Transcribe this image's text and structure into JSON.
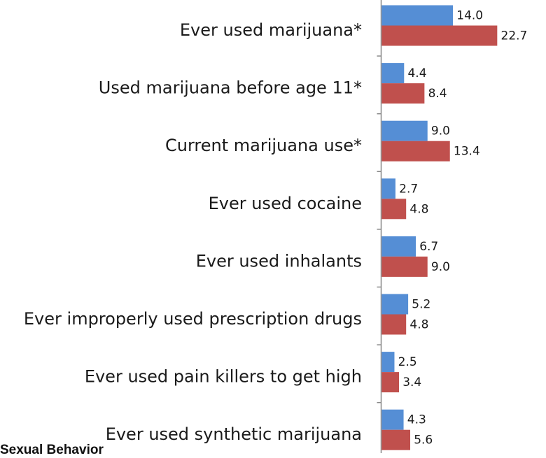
{
  "chart_data": {
    "type": "bar",
    "orientation": "horizontal",
    "categories": [
      "Ever used marijuana*",
      "Used marijuana before age 11*",
      "Current marijuana use*",
      "Ever used cocaine",
      "Ever used inhalants",
      "Ever improperly used prescription drugs",
      "Ever used pain killers to get high",
      "Ever used synthetic marijuana"
    ],
    "series": [
      {
        "values": [
          14.0,
          4.4,
          9.0,
          2.7,
          6.7,
          5.2,
          2.5,
          4.3
        ],
        "labels": [
          "14.0",
          "4.4",
          "9.0",
          "2.7",
          "6.7",
          "5.2",
          "2.5",
          "4.3"
        ],
        "color": "#558ed5"
      },
      {
        "values": [
          22.7,
          8.4,
          13.4,
          4.8,
          9.0,
          4.8,
          3.4,
          5.6
        ],
        "labels": [
          "22.7",
          "8.4",
          "13.4",
          "4.8",
          "9.0",
          "4.8",
          "3.4",
          "5.6"
        ],
        "color": "#c0504d"
      }
    ],
    "xlim": [
      0,
      25
    ],
    "grid": false,
    "legend": "none",
    "axis_color": "#888888"
  },
  "section_heading": "Sexual Behavior"
}
